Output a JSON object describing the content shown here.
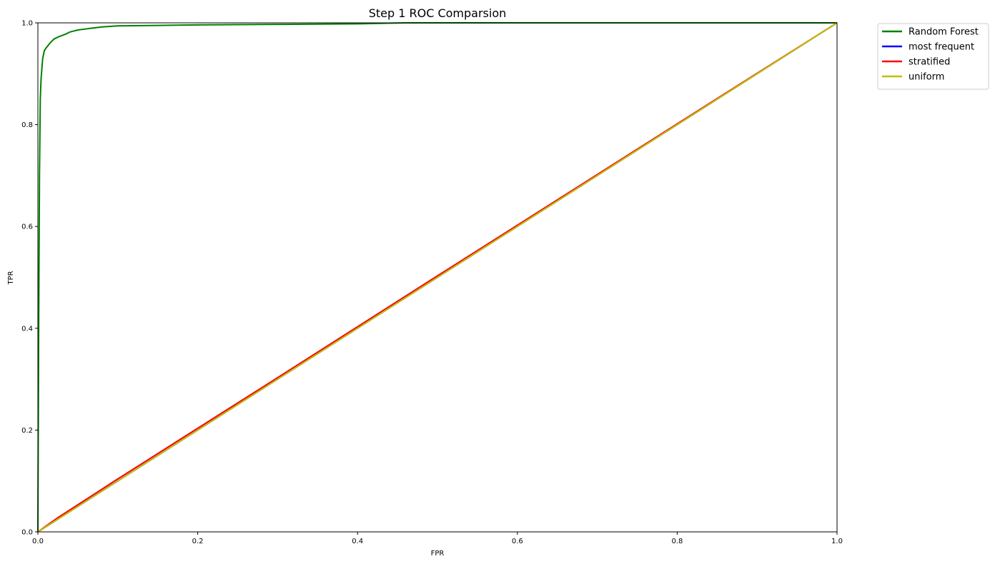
{
  "chart_data": {
    "type": "line",
    "title": "Step 1 ROC Comparsion",
    "xlabel": "FPR",
    "ylabel": "TPR",
    "xlim": [
      0,
      1
    ],
    "ylim": [
      0,
      1
    ],
    "xticks": [
      "0.0",
      "0.2",
      "0.4",
      "0.6",
      "0.8",
      "1.0"
    ],
    "yticks": [
      "0.0",
      "0.2",
      "0.4",
      "0.6",
      "0.8",
      "1.0"
    ],
    "grid": false,
    "legend_position": "outside-top-right",
    "series": [
      {
        "name": "Random Forest",
        "color": "#008000",
        "x": [
          0,
          0.001,
          0.002,
          0.003,
          0.004,
          0.005,
          0.006,
          0.008,
          0.01,
          0.015,
          0.02,
          0.025,
          0.03,
          0.035,
          0.04,
          0.045,
          0.05,
          0.06,
          0.07,
          0.08,
          0.09,
          0.1,
          0.15,
          0.2,
          0.3,
          0.4,
          0.46,
          0.6,
          0.8,
          1.0
        ],
        "y": [
          0,
          0.4,
          0.7,
          0.85,
          0.89,
          0.91,
          0.93,
          0.945,
          0.95,
          0.96,
          0.968,
          0.972,
          0.975,
          0.978,
          0.982,
          0.984,
          0.986,
          0.988,
          0.99,
          0.992,
          0.993,
          0.994,
          0.995,
          0.996,
          0.997,
          0.998,
          1.0,
          1.0,
          1.0,
          1.0
        ]
      },
      {
        "name": "most frequent",
        "color": "#0000ff",
        "x": [
          0,
          1
        ],
        "y": [
          0,
          1
        ]
      },
      {
        "name": "stratified",
        "color": "#ff0000",
        "x": [
          0,
          0.025,
          0.1,
          0.3,
          0.5,
          0.7,
          0.9,
          1.0
        ],
        "y": [
          0,
          0.028,
          0.104,
          0.303,
          0.503,
          0.702,
          0.901,
          1.0
        ]
      },
      {
        "name": "uniform",
        "color": "#bfbf00",
        "x": [
          0,
          1
        ],
        "y": [
          0,
          1
        ]
      }
    ]
  }
}
